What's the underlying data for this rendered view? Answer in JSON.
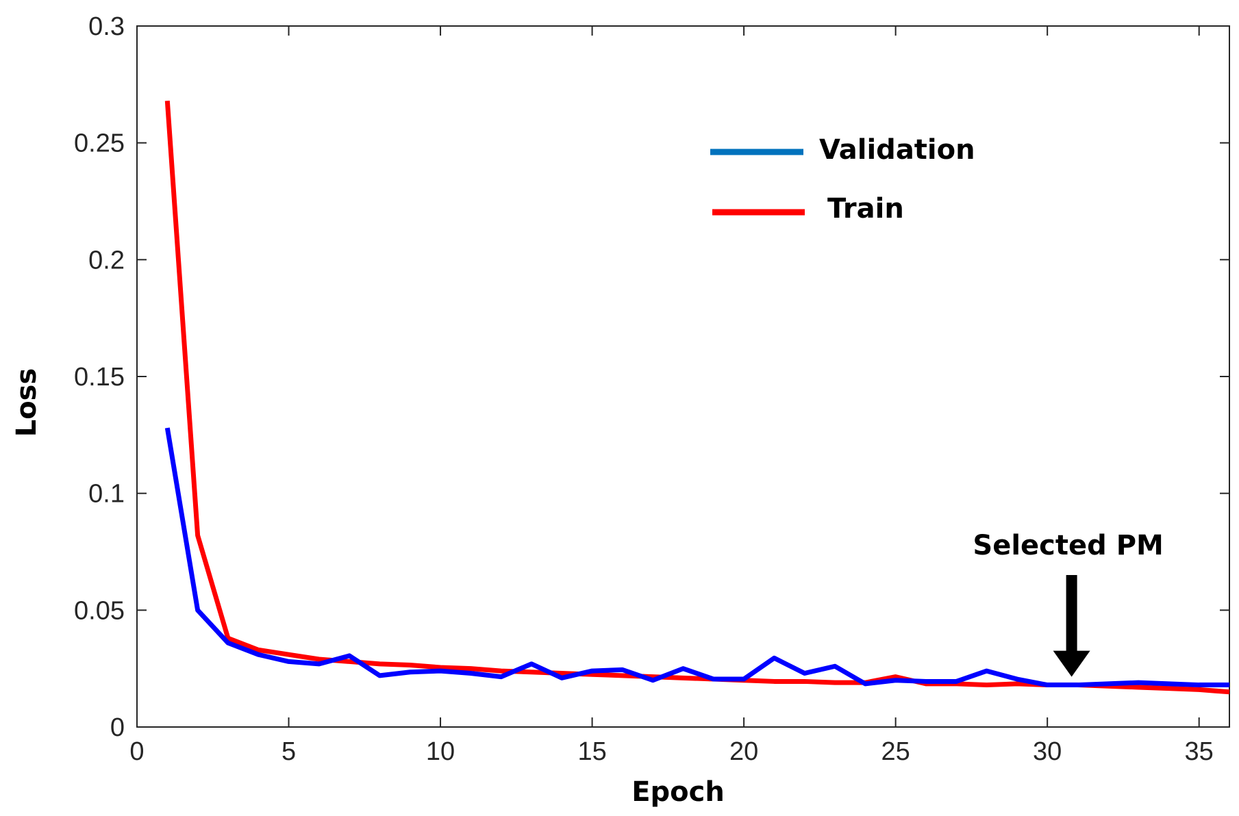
{
  "chart_data": {
    "type": "line",
    "title": "",
    "xlabel": "Epoch",
    "ylabel": "Loss",
    "xlim": [
      0,
      36
    ],
    "ylim": [
      0,
      0.3
    ],
    "xticks": [
      0,
      5,
      10,
      15,
      20,
      25,
      30,
      35
    ],
    "xtick_labels": [
      "0",
      "5",
      "10",
      "15",
      "20",
      "25",
      "30",
      "35"
    ],
    "yticks": [
      0,
      0.05,
      0.1,
      0.15,
      0.2,
      0.25,
      0.3
    ],
    "ytick_labels": [
      "0",
      "0.05",
      "0.1",
      "0.15",
      "0.2",
      "0.25",
      "0.3"
    ],
    "grid": false,
    "legend_position": "top-right",
    "x": [
      1,
      2,
      3,
      4,
      5,
      6,
      7,
      8,
      9,
      10,
      11,
      12,
      13,
      14,
      15,
      16,
      17,
      18,
      19,
      20,
      21,
      22,
      23,
      24,
      25,
      26,
      27,
      28,
      29,
      30,
      31,
      32,
      33,
      34,
      35,
      36
    ],
    "series": [
      {
        "name": "Train",
        "color": "#ff0000",
        "legend_color": "#ff0000",
        "values": [
          0.268,
          0.082,
          0.038,
          0.033,
          0.031,
          0.029,
          0.028,
          0.027,
          0.0265,
          0.0255,
          0.025,
          0.024,
          0.0235,
          0.023,
          0.0225,
          0.022,
          0.0215,
          0.021,
          0.0205,
          0.02,
          0.0195,
          0.0195,
          0.019,
          0.019,
          0.0215,
          0.0185,
          0.0185,
          0.018,
          0.0185,
          0.018,
          0.018,
          0.0175,
          0.017,
          0.0165,
          0.016,
          0.015
        ]
      },
      {
        "name": "Validation",
        "color": "#0000ff",
        "legend_color": "#0072bd",
        "values": [
          0.128,
          0.05,
          0.036,
          0.031,
          0.028,
          0.027,
          0.0305,
          0.022,
          0.0235,
          0.024,
          0.023,
          0.0215,
          0.027,
          0.021,
          0.024,
          0.0245,
          0.02,
          0.025,
          0.0205,
          0.0205,
          0.0295,
          0.023,
          0.026,
          0.0185,
          0.02,
          0.0195,
          0.0195,
          0.024,
          0.0205,
          0.018,
          0.018,
          0.0185,
          0.019,
          0.0185,
          0.018,
          0.018
        ]
      }
    ],
    "legend_order": [
      "Validation",
      "Train"
    ],
    "annotation": {
      "text": "Selected PM",
      "epoch": 30.8,
      "loss": 0.0215
    }
  }
}
